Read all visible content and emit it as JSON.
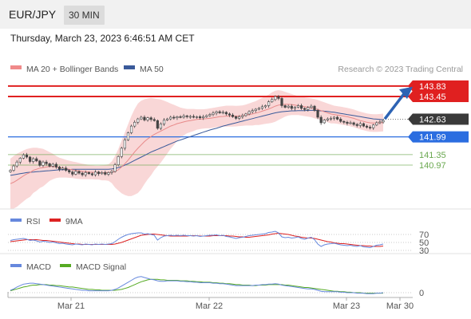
{
  "header": {
    "pair": "EUR/JPY",
    "timeframe": "30 MIN",
    "timestamp": "Thursday, March 23, 2023 6:46:51 AM CET"
  },
  "credit": "Research © 2023 Trading Central",
  "colors": {
    "resistance": "#e02020",
    "support": "#2b6de0",
    "pivot": "#6aa84f",
    "price_tag": "#3a3a3a",
    "arrow": "#2d63b4",
    "bollinger": "#f7c9c9",
    "ma20": "#e88a8a",
    "ma50": "#3a5a9a",
    "candle": "#444444",
    "rsi": "#6688dd",
    "rsi_ma": "#dd2222",
    "macd": "#6688dd",
    "macd_signal": "#55aa22"
  },
  "chart_data": [
    {
      "type": "candlestick",
      "legend": [
        {
          "label": "MA 20 + Bollinger Bands",
          "color": "#f08a8a"
        },
        {
          "label": "MA 50",
          "color": "#3a5a9a"
        }
      ],
      "ylim": [
        139.5,
        144.2
      ],
      "x_ticks": [
        "Mar 21",
        "Mar 22",
        "Mar 23",
        "Mar 30"
      ],
      "levels": [
        {
          "value": 143.83,
          "label": "143.83",
          "kind": "resistance"
        },
        {
          "value": 143.45,
          "label": "143.45",
          "kind": "resistance"
        },
        {
          "value": 142.63,
          "label": "142.63",
          "kind": "price"
        },
        {
          "value": 141.99,
          "label": "141.99",
          "kind": "support"
        },
        {
          "value": 141.35,
          "label": "141.35",
          "kind": "pivot"
        },
        {
          "value": 140.97,
          "label": "140.97",
          "kind": "pivot"
        }
      ],
      "close": [
        140.78,
        140.94,
        141.08,
        141.22,
        141.34,
        141.26,
        141.1,
        141.2,
        141.12,
        140.96,
        141.08,
        141.02,
        140.93,
        141.0,
        140.9,
        140.82,
        140.86,
        140.78,
        140.72,
        140.64,
        140.74,
        140.68,
        140.62,
        140.7,
        140.66,
        140.62,
        140.72,
        140.66,
        140.7,
        140.64,
        140.7,
        140.74,
        140.98,
        141.28,
        141.58,
        141.88,
        142.14,
        142.38,
        142.52,
        142.64,
        142.7,
        142.6,
        142.68,
        142.62,
        142.58,
        142.3,
        142.46,
        142.6,
        142.64,
        142.7,
        142.68,
        142.72,
        142.7,
        142.75,
        142.72,
        142.73,
        142.7,
        142.72,
        142.68,
        142.72,
        142.76,
        142.8,
        142.85,
        142.9,
        142.86,
        142.88,
        142.82,
        142.78,
        142.72,
        142.66,
        142.72,
        142.76,
        142.82,
        142.9,
        142.94,
        142.99,
        143.02,
        143.08,
        143.12,
        143.26,
        143.34,
        143.45,
        143.38,
        143.12,
        143.06,
        143.1,
        143.02,
        143.06,
        143.12,
        143.02,
        142.98,
        143.05,
        143.1,
        142.95,
        142.7,
        142.5,
        142.6,
        142.64,
        142.66,
        142.7,
        142.63,
        142.55,
        142.52,
        142.48,
        142.5,
        142.44,
        142.4,
        142.47,
        142.38,
        142.34,
        142.32,
        142.42,
        142.5,
        142.53,
        142.58
      ],
      "ma20": [
        140.3,
        140.35,
        140.42,
        140.5,
        140.58,
        140.65,
        140.7,
        140.78,
        140.82,
        140.86,
        140.88,
        140.9,
        140.92,
        140.92,
        140.9,
        140.88,
        140.86,
        140.84,
        140.82,
        140.8,
        140.78,
        140.76,
        140.74,
        140.73,
        140.72,
        140.71,
        140.7,
        140.7,
        140.69,
        140.7,
        140.7,
        140.71,
        140.73,
        140.8,
        140.9,
        141.02,
        141.15,
        141.3,
        141.45,
        141.58,
        141.7,
        141.82,
        141.92,
        142.0,
        142.08,
        142.14,
        142.2,
        142.26,
        142.32,
        142.38,
        142.42,
        142.47,
        142.5,
        142.53,
        142.56,
        142.58,
        142.6,
        142.62,
        142.63,
        142.64,
        142.65,
        142.66,
        142.68,
        142.7,
        142.72,
        142.73,
        142.74,
        142.74,
        142.74,
        142.74,
        142.75,
        142.76,
        142.78,
        142.8,
        142.82,
        142.85,
        142.88,
        142.92,
        142.96,
        143.0,
        143.05,
        143.1,
        143.14,
        143.16,
        143.17,
        143.17,
        143.16,
        143.14,
        143.12,
        143.1,
        143.08,
        143.06,
        143.04,
        143.01,
        142.98,
        142.94,
        142.9,
        142.86,
        142.82,
        142.8,
        142.78,
        142.76,
        142.74,
        142.72,
        142.69,
        142.66,
        142.62,
        142.58,
        142.55,
        142.52,
        142.5,
        142.49,
        142.49,
        142.5,
        142.51
      ],
      "ma50": [
        140.6,
        140.62,
        140.64,
        140.66,
        140.68,
        140.7,
        140.71,
        140.72,
        140.73,
        140.74,
        140.75,
        140.76,
        140.77,
        140.78,
        140.79,
        140.8,
        140.8,
        140.81,
        140.81,
        140.82,
        140.82,
        140.82,
        140.82,
        140.82,
        140.82,
        140.82,
        140.82,
        140.82,
        140.82,
        140.82,
        140.82,
        140.83,
        140.85,
        140.88,
        140.92,
        140.97,
        141.02,
        141.08,
        141.14,
        141.2,
        141.26,
        141.32,
        141.38,
        141.44,
        141.49,
        141.54,
        141.59,
        141.64,
        141.69,
        141.74,
        141.79,
        141.84,
        141.88,
        141.92,
        141.96,
        142.0,
        142.04,
        142.08,
        142.12,
        142.16,
        142.2,
        142.24,
        142.27,
        142.3,
        142.34,
        142.38,
        142.41,
        142.44,
        142.47,
        142.5,
        142.53,
        142.56,
        142.59,
        142.62,
        142.65,
        142.68,
        142.71,
        142.74,
        142.77,
        142.8,
        142.83,
        142.86,
        142.88,
        142.9,
        142.91,
        142.92,
        142.93,
        142.93,
        142.94,
        142.94,
        142.94,
        142.95,
        142.95,
        142.95,
        142.94,
        142.93,
        142.92,
        142.91,
        142.89,
        142.88,
        142.86,
        142.84,
        142.82,
        142.8,
        142.78,
        142.76,
        142.74,
        142.72,
        142.7,
        142.68,
        142.66,
        142.64,
        142.63,
        142.62,
        142.61
      ],
      "bb_upper": [
        141.2,
        141.3,
        141.38,
        141.44,
        141.5,
        141.55,
        141.58,
        141.6,
        141.6,
        141.58,
        141.56,
        141.5,
        141.44,
        141.38,
        141.3,
        141.24,
        141.2,
        141.16,
        141.13,
        141.1,
        141.08,
        141.05,
        141.02,
        141.0,
        140.98,
        140.96,
        140.95,
        140.95,
        140.96,
        140.98,
        141.0,
        141.1,
        141.3,
        141.55,
        141.85,
        142.15,
        142.45,
        142.75,
        143.0,
        143.2,
        143.3,
        143.35,
        143.38,
        143.4,
        143.38,
        143.36,
        143.34,
        143.3,
        143.25,
        143.2,
        143.15,
        143.1,
        143.05,
        143.02,
        143.0,
        143.0,
        143.0,
        142.99,
        142.99,
        142.99,
        143.0,
        143.02,
        143.04,
        143.06,
        143.08,
        143.1,
        143.12,
        143.12,
        143.12,
        143.11,
        143.12,
        143.13,
        143.16,
        143.2,
        143.24,
        143.28,
        143.34,
        143.4,
        143.46,
        143.52,
        143.6,
        143.66,
        143.68,
        143.66,
        143.62,
        143.58,
        143.54,
        143.5,
        143.46,
        143.44,
        143.42,
        143.4,
        143.38,
        143.36,
        143.33,
        143.28,
        143.24,
        143.2,
        143.16,
        143.12,
        143.1,
        143.08,
        143.06,
        143.04,
        143.01,
        142.98,
        142.94,
        142.9,
        142.87,
        142.84,
        142.82,
        142.81,
        142.81,
        142.82,
        142.83
      ],
      "bb_lower": [
        139.4,
        139.4,
        139.46,
        139.56,
        139.66,
        139.75,
        139.82,
        139.96,
        140.04,
        140.14,
        140.2,
        140.3,
        140.4,
        140.46,
        140.5,
        140.52,
        140.52,
        140.52,
        140.51,
        140.5,
        140.48,
        140.47,
        140.46,
        140.46,
        140.46,
        140.46,
        140.45,
        140.45,
        140.42,
        140.42,
        140.4,
        140.32,
        140.16,
        140.05,
        139.95,
        139.89,
        139.85,
        139.85,
        139.9,
        139.96,
        140.1,
        140.29,
        140.46,
        140.6,
        140.78,
        140.92,
        141.06,
        141.22,
        141.39,
        141.56,
        141.69,
        141.84,
        141.95,
        142.04,
        142.12,
        142.16,
        142.2,
        142.25,
        142.27,
        142.29,
        142.3,
        142.3,
        142.32,
        142.34,
        142.36,
        142.36,
        142.36,
        142.36,
        142.36,
        142.37,
        142.38,
        142.39,
        142.4,
        142.4,
        142.4,
        142.42,
        142.42,
        142.44,
        142.46,
        142.48,
        142.5,
        142.54,
        142.6,
        142.66,
        142.72,
        142.76,
        142.78,
        142.78,
        142.78,
        142.76,
        142.74,
        142.72,
        142.7,
        142.66,
        142.63,
        142.6,
        142.56,
        142.52,
        142.48,
        142.48,
        142.46,
        142.44,
        142.42,
        142.4,
        142.37,
        142.34,
        142.3,
        142.26,
        142.23,
        142.2,
        142.18,
        142.17,
        142.17,
        142.18,
        142.19
      ]
    },
    {
      "type": "line",
      "name": "RSI",
      "legend": [
        {
          "label": "RSI",
          "color": "#6688dd"
        },
        {
          "label": "9MA",
          "color": "#dd2222"
        }
      ],
      "levels": [
        70,
        50,
        30
      ],
      "ylim": [
        22,
        78
      ],
      "rsi": [
        55,
        57,
        58,
        59,
        60,
        58,
        55,
        56,
        54,
        51,
        53,
        52,
        50,
        51,
        49,
        47,
        48,
        46,
        45,
        44,
        46,
        45,
        44,
        46,
        45,
        44,
        46,
        45,
        46,
        45,
        46,
        47,
        52,
        58,
        63,
        67,
        70,
        72,
        73,
        74,
        74,
        71,
        72,
        70,
        68,
        56,
        62,
        66,
        67,
        68,
        67,
        68,
        67,
        68,
        67,
        67,
        66,
        67,
        65,
        66,
        67,
        68,
        68,
        69,
        67,
        68,
        65,
        64,
        62,
        60,
        62,
        63,
        65,
        67,
        68,
        69,
        70,
        71,
        72,
        75,
        76,
        78,
        74,
        64,
        62,
        63,
        61,
        62,
        64,
        60,
        58,
        61,
        63,
        57,
        46,
        40,
        44,
        46,
        47,
        48,
        46,
        44,
        43,
        42,
        43,
        41,
        40,
        42,
        39,
        38,
        37,
        40,
        43,
        44,
        46
      ],
      "rsi_ma": [
        52,
        53,
        54,
        55,
        56,
        57,
        57,
        57,
        57,
        56,
        55,
        55,
        54,
        53,
        52,
        51,
        50,
        49,
        48,
        47,
        46,
        46,
        45,
        45,
        45,
        45,
        45,
        45,
        45,
        45,
        45,
        45,
        46,
        48,
        50,
        53,
        56,
        59,
        62,
        65,
        68,
        69,
        70,
        71,
        71,
        70,
        69,
        68,
        67,
        66,
        66,
        66,
        66,
        66,
        66,
        67,
        67,
        67,
        66,
        66,
        66,
        66,
        67,
        67,
        67,
        67,
        67,
        66,
        66,
        65,
        64,
        64,
        63,
        63,
        64,
        65,
        66,
        67,
        68,
        69,
        71,
        72,
        73,
        72,
        71,
        70,
        68,
        66,
        65,
        63,
        62,
        61,
        61,
        60,
        58,
        56,
        54,
        52,
        51,
        49,
        48,
        47,
        47,
        46,
        45,
        44,
        43,
        42,
        42,
        41,
        41,
        40,
        40,
        40,
        41
      ]
    },
    {
      "type": "line",
      "name": "MACD",
      "legend": [
        {
          "label": "MACD",
          "color": "#6688dd"
        },
        {
          "label": "MACD Signal",
          "color": "#55aa22"
        }
      ],
      "levels": [
        0
      ],
      "ylim": [
        -0.05,
        0.42
      ],
      "macd": [
        0.05,
        0.08,
        0.12,
        0.15,
        0.18,
        0.19,
        0.2,
        0.2,
        0.19,
        0.18,
        0.17,
        0.16,
        0.15,
        0.14,
        0.13,
        0.12,
        0.11,
        0.1,
        0.09,
        0.08,
        0.07,
        0.06,
        0.05,
        0.05,
        0.04,
        0.04,
        0.04,
        0.04,
        0.04,
        0.04,
        0.04,
        0.05,
        0.07,
        0.1,
        0.14,
        0.18,
        0.22,
        0.26,
        0.3,
        0.33,
        0.34,
        0.32,
        0.3,
        0.28,
        0.27,
        0.25,
        0.24,
        0.24,
        0.25,
        0.25,
        0.25,
        0.25,
        0.24,
        0.24,
        0.23,
        0.23,
        0.22,
        0.22,
        0.21,
        0.21,
        0.21,
        0.21,
        0.2,
        0.2,
        0.19,
        0.19,
        0.18,
        0.17,
        0.16,
        0.15,
        0.15,
        0.15,
        0.15,
        0.15,
        0.15,
        0.16,
        0.16,
        0.17,
        0.17,
        0.18,
        0.18,
        0.19,
        0.18,
        0.16,
        0.15,
        0.14,
        0.13,
        0.12,
        0.11,
        0.1,
        0.09,
        0.08,
        0.08,
        0.07,
        0.05,
        0.03,
        0.02,
        0.02,
        0.02,
        0.02,
        0.02,
        0.01,
        0.01,
        0.0,
        0.0,
        0.0,
        -0.01,
        -0.01,
        -0.01,
        -0.02,
        -0.02,
        -0.02,
        -0.01,
        -0.01,
        0.0
      ],
      "signal": [
        0.04,
        0.06,
        0.08,
        0.1,
        0.12,
        0.13,
        0.15,
        0.16,
        0.16,
        0.17,
        0.17,
        0.17,
        0.16,
        0.16,
        0.15,
        0.15,
        0.14,
        0.13,
        0.12,
        0.12,
        0.11,
        0.1,
        0.09,
        0.08,
        0.07,
        0.07,
        0.06,
        0.06,
        0.05,
        0.05,
        0.05,
        0.05,
        0.05,
        0.06,
        0.07,
        0.09,
        0.11,
        0.14,
        0.17,
        0.2,
        0.23,
        0.25,
        0.27,
        0.28,
        0.28,
        0.28,
        0.27,
        0.27,
        0.26,
        0.26,
        0.26,
        0.26,
        0.25,
        0.25,
        0.25,
        0.24,
        0.24,
        0.23,
        0.23,
        0.22,
        0.22,
        0.22,
        0.21,
        0.21,
        0.2,
        0.2,
        0.19,
        0.19,
        0.18,
        0.17,
        0.17,
        0.16,
        0.16,
        0.16,
        0.15,
        0.15,
        0.16,
        0.16,
        0.16,
        0.17,
        0.17,
        0.17,
        0.17,
        0.17,
        0.16,
        0.16,
        0.15,
        0.14,
        0.13,
        0.12,
        0.11,
        0.11,
        0.1,
        0.09,
        0.08,
        0.07,
        0.06,
        0.05,
        0.04,
        0.03,
        0.03,
        0.02,
        0.02,
        0.01,
        0.01,
        0.0,
        0.0,
        0.0,
        -0.01,
        -0.01,
        -0.01,
        -0.01,
        -0.01,
        -0.01,
        -0.01
      ]
    }
  ]
}
